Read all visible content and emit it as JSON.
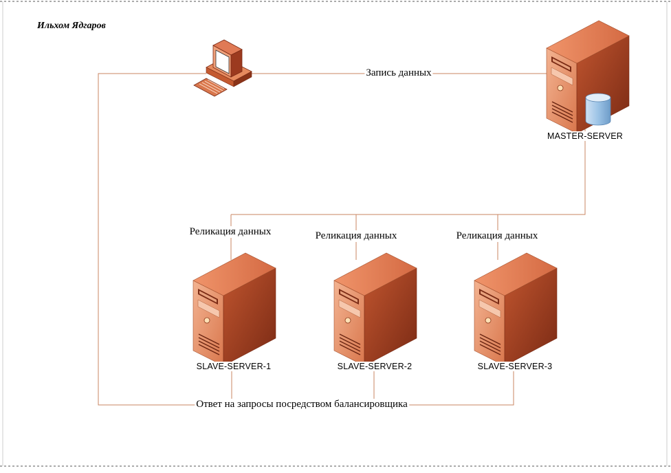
{
  "author": "Ильхом Ядгаров",
  "edges": {
    "write": "Запись данных",
    "replication": [
      "Реликация данных",
      "Реликация данных",
      "Реликация данных"
    ],
    "response": "Ответ на запросы посредством балансировщика"
  },
  "nodes": {
    "client": {
      "icon": "desktop-computer-icon"
    },
    "master": {
      "label": "MASTER-SERVER",
      "icon": "server-tower-icon",
      "badge": "database-cylinder-icon"
    },
    "slaves": [
      {
        "label": "SLAVE-SERVER-1",
        "icon": "server-tower-icon"
      },
      {
        "label": "SLAVE-SERVER-2",
        "icon": "server-tower-icon"
      },
      {
        "label": "SLAVE-SERVER-3",
        "icon": "server-tower-icon"
      }
    ]
  },
  "colors": {
    "server_front": "#e8956d",
    "server_side": "#9c3a1f",
    "server_top": "#e07a55",
    "connector": "#c98662",
    "db_cylinder": "#8fb8de"
  }
}
